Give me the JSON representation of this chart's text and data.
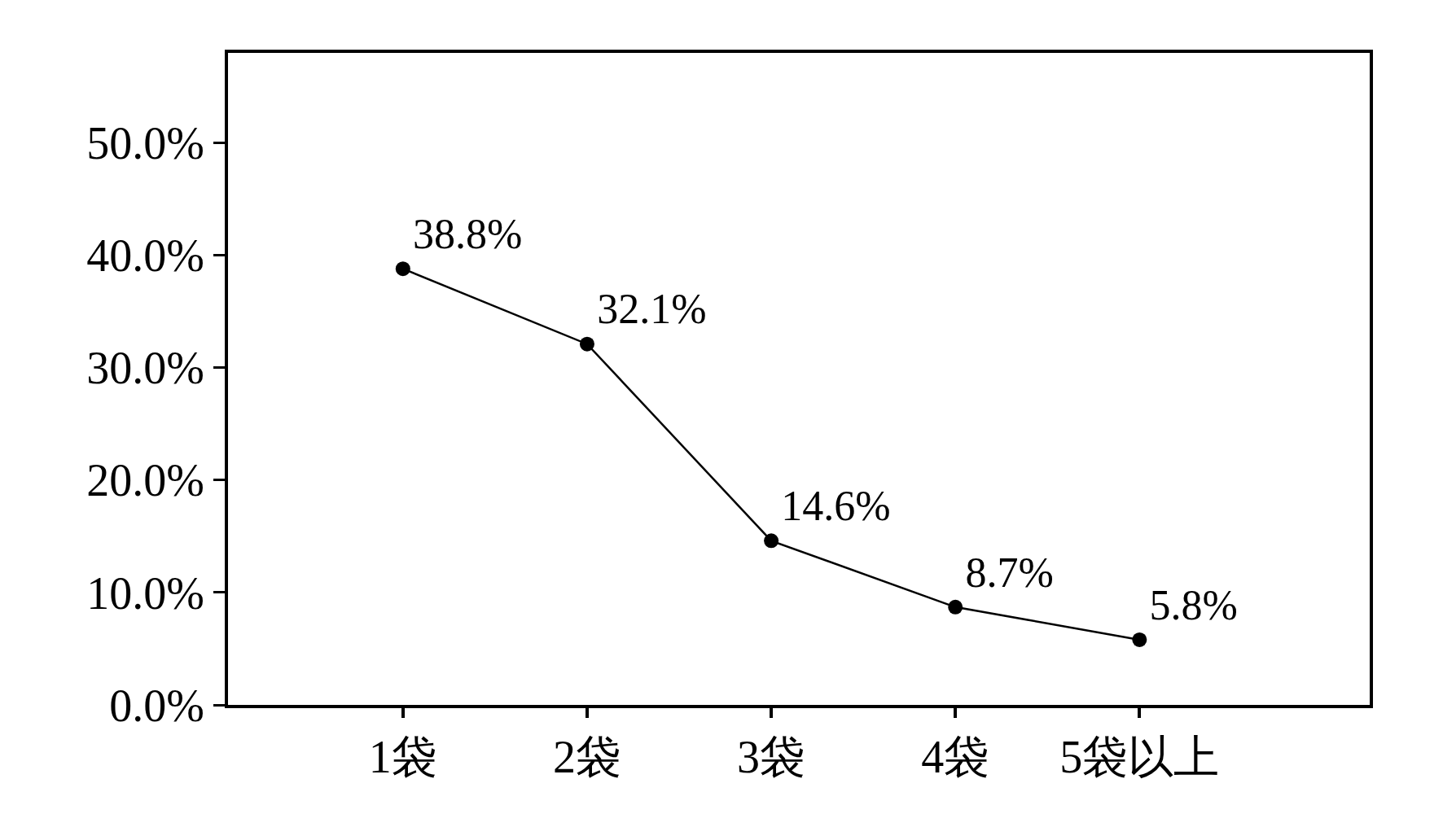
{
  "chart_data": {
    "type": "line",
    "categories": [
      "1袋",
      "2袋",
      "3袋",
      "4袋",
      "5袋以上"
    ],
    "values": [
      38.8,
      32.1,
      14.6,
      8.7,
      5.8
    ],
    "value_labels": [
      "38.8%",
      "32.1%",
      "14.6%",
      "8.7%",
      "5.8%"
    ],
    "color": "#000000",
    "marker": "circle",
    "ylim": [
      0,
      58
    ],
    "yticks": [
      {
        "value": 0,
        "label": "0.0%"
      },
      {
        "value": 10,
        "label": "10.0%"
      },
      {
        "value": 20,
        "label": "20.0%"
      },
      {
        "value": 30,
        "label": "30.0%"
      },
      {
        "value": 40,
        "label": "40.0%"
      },
      {
        "value": 50,
        "label": "50.0%"
      }
    ],
    "line_style": "solid"
  }
}
